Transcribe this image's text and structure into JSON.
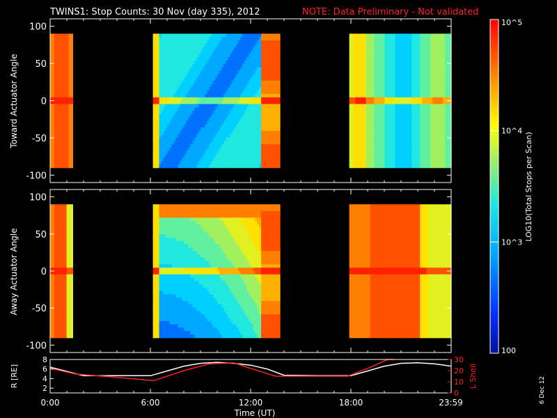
{
  "title": {
    "main": "TWINS1: Stop Counts: 30 Nov (day 335), 2012",
    "note": "NOTE: Data Preliminary - Not validated",
    "note_color": "#ff2020"
  },
  "date_stamp": "6 Dec 12",
  "chart_data": [
    {
      "type": "heatmap",
      "panel": "toward",
      "ylabel": "Toward Actuator Angle",
      "ylim": [
        -110,
        110
      ],
      "yticks": [
        -100,
        -50,
        0,
        50,
        100
      ],
      "data_ylim": [
        -90,
        90
      ],
      "xlim_hours": [
        0,
        24
      ],
      "segments": [
        {
          "start_h": 0.0,
          "end_h": 1.35,
          "level": "high"
        },
        {
          "start_h": 6.15,
          "end_h": 13.75,
          "level": "low-to-high"
        },
        {
          "start_h": 17.9,
          "end_h": 24.0,
          "level": "medium"
        }
      ]
    },
    {
      "type": "heatmap",
      "panel": "away",
      "ylabel": "Away Actuator Angle",
      "ylim": [
        -110,
        110
      ],
      "yticks": [
        -100,
        -50,
        0,
        50,
        100
      ],
      "data_ylim": [
        -90,
        90
      ],
      "xlim_hours": [
        0,
        24
      ],
      "segments": [
        {
          "start_h": 0.0,
          "end_h": 1.35,
          "level": "high"
        },
        {
          "start_h": 6.15,
          "end_h": 13.75,
          "level": "low-to-high"
        },
        {
          "start_h": 17.9,
          "end_h": 24.0,
          "level": "high"
        }
      ]
    },
    {
      "type": "line",
      "panel": "orbit",
      "ylabel_left": "R [RE]",
      "ylabel_right": "L Shell",
      "left_ylim": [
        1,
        8
      ],
      "left_yticks": [
        2,
        4,
        6,
        8
      ],
      "right_ylim": [
        0,
        30
      ],
      "right_yticks": [
        0,
        10,
        20,
        30
      ],
      "xlabel": "Time (UT)",
      "xtick_labels": [
        "0:00",
        "6:00",
        "12:00",
        "18:00",
        "23:59"
      ],
      "xtick_hours": [
        0,
        6,
        12,
        18,
        23.98
      ],
      "series": [
        {
          "color": "#ffffff",
          "axis": "left",
          "x": [
            0,
            1,
            2,
            4,
            6,
            7,
            8,
            9,
            10,
            11,
            12,
            13,
            14,
            16,
            18,
            19,
            20,
            21,
            22,
            23,
            24
          ],
          "y": [
            6.4,
            5.5,
            4.6,
            4.6,
            4.6,
            5.6,
            6.6,
            7.2,
            7.4,
            7.2,
            6.8,
            6.0,
            4.7,
            4.6,
            4.6,
            5.6,
            6.6,
            7.2,
            7.3,
            7.1,
            6.6
          ]
        },
        {
          "color": "#ff2020",
          "axis": "right",
          "x": [
            0,
            1.5,
            4,
            6.2,
            8,
            9.5,
            11,
            12,
            13.5,
            16,
            17.8,
            19,
            20.2,
            20.6
          ],
          "y": [
            22,
            17,
            14,
            11,
            20,
            26,
            27,
            22,
            15,
            15,
            15,
            22,
            30,
            30
          ]
        }
      ]
    }
  ],
  "colorbar": {
    "label": "LOG10(Total Stops per Scan)",
    "ticks": [
      {
        "label": "10^5",
        "value": 100000
      },
      {
        "label": "10^4",
        "value": 10000
      },
      {
        "label": "10^3",
        "value": 1000
      },
      {
        "label": "100",
        "value": 100
      }
    ],
    "vmin": 100,
    "vmax": 100000
  }
}
